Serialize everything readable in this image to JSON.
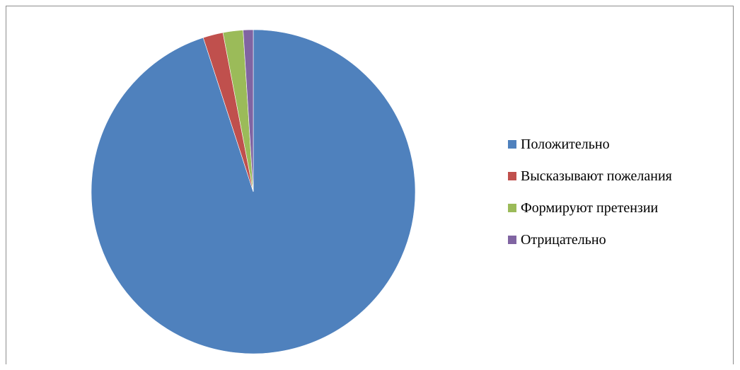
{
  "chart_data": {
    "type": "pie",
    "title": "",
    "legend_position": "right",
    "slices": [
      {
        "label": "Положительно",
        "value": 95,
        "color": "#4f81bd"
      },
      {
        "label": "Высказывают пожелания",
        "value": 2,
        "color": "#c0504d"
      },
      {
        "label": "Формируют претензии",
        "value": 2,
        "color": "#9bbb59"
      },
      {
        "label": "Отрицательно",
        "value": 1,
        "color": "#8064a2"
      }
    ]
  }
}
